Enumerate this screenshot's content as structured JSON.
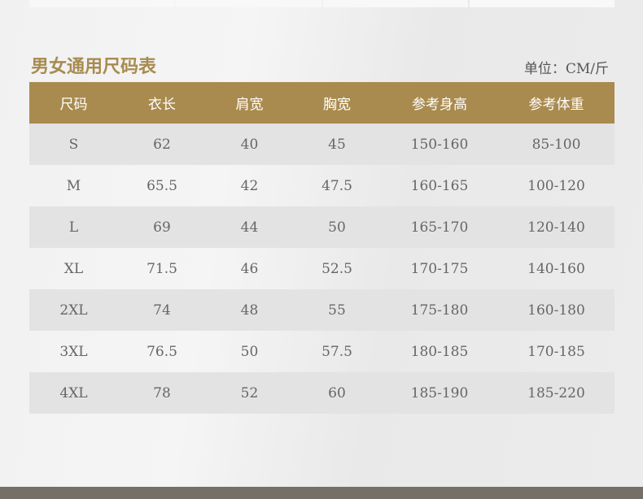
{
  "title": "男女通用尺码表",
  "unit": "单位：CM/斤",
  "colors": {
    "accent": "#a98b4f",
    "header_text": "#ffffff",
    "alt_row": "#e3e3e3"
  },
  "columns": [
    "尺码",
    "衣长",
    "肩宽",
    "胸宽",
    "参考身高",
    "参考体重"
  ],
  "rows": [
    [
      "S",
      "62",
      "40",
      "45",
      "150-160",
      "85-100"
    ],
    [
      "M",
      "65.5",
      "42",
      "47.5",
      "160-165",
      "100-120"
    ],
    [
      "L",
      "69",
      "44",
      "50",
      "165-170",
      "120-140"
    ],
    [
      "XL",
      "71.5",
      "46",
      "52.5",
      "170-175",
      "140-160"
    ],
    [
      "2XL",
      "74",
      "48",
      "55",
      "175-180",
      "160-180"
    ],
    [
      "3XL",
      "76.5",
      "50",
      "57.5",
      "180-185",
      "170-185"
    ],
    [
      "4XL",
      "78",
      "52",
      "60",
      "185-190",
      "185-220"
    ]
  ]
}
